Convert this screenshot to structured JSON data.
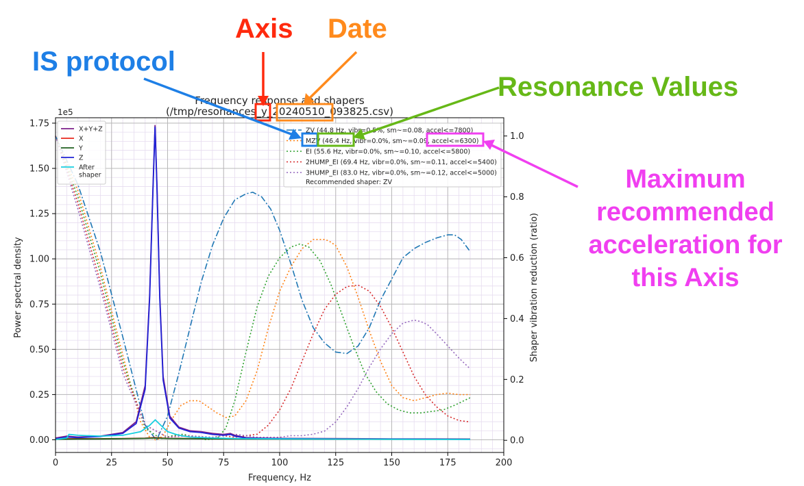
{
  "chart_data": {
    "type": "line",
    "title_line1": "Frequency response and shapers",
    "title_line2": "(/tmp/resonances_y_20240510_093825.csv)",
    "xlabel": "Frequency, Hz",
    "ylabel_left": "Power spectral density",
    "ylabel_right": "Shaper vibration reduction (ratio)",
    "y_left_multiplier": "1e5",
    "xlim": [
      0,
      200
    ],
    "ylim_left": [
      -0.07,
      1.78
    ],
    "ylim_right": [
      -0.04,
      1.06
    ],
    "xticks": [
      0,
      25,
      50,
      75,
      100,
      125,
      150,
      175,
      200
    ],
    "yticks_left": [
      0.0,
      0.25,
      0.5,
      0.75,
      1.0,
      1.25,
      1.5,
      1.75
    ],
    "yticks_left_labels": [
      "0.00",
      "0.25",
      "0.50",
      "0.75",
      "1.00",
      "1.25",
      "1.50",
      "1.75"
    ],
    "yticks_right": [
      0.0,
      0.2,
      0.4,
      0.6,
      0.8,
      1.0
    ],
    "yticks_right_labels": [
      "0.0",
      "0.2",
      "0.4",
      "0.6",
      "0.8",
      "1.0"
    ],
    "grid": true,
    "psd_legend": [
      "X+Y+Z",
      "X",
      "Y",
      "Z",
      "After\nshaper"
    ],
    "psd_series": [
      {
        "name": "X+Y+Z",
        "color": "#7b1f8a",
        "x": [
          0,
          5,
          10,
          20,
          30,
          36,
          40,
          42,
          43.5,
          44.4,
          45.3,
          46.5,
          48,
          51,
          55,
          60,
          65,
          70,
          75,
          78,
          80,
          85,
          90,
          100,
          120,
          150,
          185
        ],
        "y": [
          0.01,
          0.02,
          0.015,
          0.02,
          0.04,
          0.1,
          0.3,
          0.8,
          1.4,
          1.74,
          1.4,
          0.8,
          0.35,
          0.13,
          0.07,
          0.05,
          0.045,
          0.035,
          0.03,
          0.035,
          0.025,
          0.012,
          0.01,
          0.008,
          0.007,
          0.005,
          0.004
        ]
      },
      {
        "name": "X",
        "color": "#e8271b",
        "x": [
          0,
          10,
          20,
          30,
          40,
          44,
          50,
          60,
          80,
          100,
          150,
          185
        ],
        "y": [
          0.005,
          0.006,
          0.006,
          0.007,
          0.009,
          0.012,
          0.008,
          0.007,
          0.006,
          0.005,
          0.004,
          0.004
        ]
      },
      {
        "name": "Y",
        "color": "#1e5e1e",
        "x": [
          0,
          10,
          20,
          30,
          40,
          44,
          50,
          60,
          80,
          100,
          150,
          185
        ],
        "y": [
          0.003,
          0.004,
          0.005,
          0.006,
          0.008,
          0.01,
          0.007,
          0.006,
          0.005,
          0.004,
          0.003,
          0.003
        ]
      },
      {
        "name": "Z",
        "color": "#1f22d6",
        "x": [
          0,
          5,
          10,
          20,
          30,
          36,
          40,
          42,
          43.5,
          44.4,
          45.3,
          46.5,
          48,
          51,
          55,
          60,
          65,
          70,
          75,
          78,
          80,
          85,
          90,
          100,
          120,
          150,
          185
        ],
        "y": [
          0.005,
          0.015,
          0.012,
          0.018,
          0.035,
          0.09,
          0.28,
          0.78,
          1.38,
          1.73,
          1.38,
          0.78,
          0.33,
          0.12,
          0.065,
          0.045,
          0.04,
          0.03,
          0.025,
          0.03,
          0.02,
          0.01,
          0.008,
          0.006,
          0.005,
          0.004,
          0.003
        ]
      },
      {
        "name": "After\nshaper",
        "color": "#17cfe0",
        "x": [
          0,
          5,
          6,
          10,
          20,
          30,
          38,
          42,
          44.5,
          47,
          50,
          55,
          60,
          70,
          80,
          100,
          150,
          185
        ],
        "y": [
          0.002,
          0.01,
          0.03,
          0.025,
          0.02,
          0.025,
          0.045,
          0.08,
          0.11,
          0.08,
          0.045,
          0.025,
          0.015,
          0.01,
          0.007,
          0.005,
          0.003,
          0.002
        ]
      }
    ],
    "shaper_legend": [
      "ZV (44.8 Hz, vibr=0.5%, sm~=0.08, accel<=7800)",
      "MZV (46.4 Hz, vibr=0.0%, sm~=0.09, accel<=6300)",
      "EI (55.6 Hz, vibr=0.0%, sm~=0.10, accel<=5800)",
      "2HUMP_EI (69.4 Hz, vibr=0.0%, sm~=0.11, accel<=5400)",
      "3HUMP_EI (83.0 Hz, vibr=0.0%, sm~=0.12, accel<=5000)"
    ],
    "recommended": "Recommended shaper: ZV",
    "shaper_series": [
      {
        "name": "ZV",
        "color": "#1f77b4",
        "style": "dashdot",
        "x": [
          0,
          10,
          20,
          30,
          40,
          45,
          50,
          55,
          60,
          65,
          70,
          75,
          80,
          85,
          88,
          92,
          96,
          100,
          105,
          110,
          115,
          120,
          125,
          130,
          135,
          140,
          145,
          150,
          155,
          160,
          165,
          170,
          175,
          178,
          181,
          185
        ],
        "y": [
          1.0,
          0.84,
          0.62,
          0.34,
          0.05,
          0.0,
          0.08,
          0.22,
          0.37,
          0.52,
          0.64,
          0.73,
          0.79,
          0.81,
          0.815,
          0.8,
          0.76,
          0.69,
          0.58,
          0.46,
          0.37,
          0.32,
          0.29,
          0.285,
          0.31,
          0.37,
          0.46,
          0.53,
          0.6,
          0.63,
          0.65,
          0.665,
          0.675,
          0.675,
          0.66,
          0.62
        ]
      },
      {
        "name": "MZV",
        "color": "#ff7f0e",
        "style": "dotted",
        "x": [
          0,
          10,
          20,
          30,
          38,
          42,
          45,
          48,
          52,
          56,
          60,
          64,
          68,
          72,
          76,
          80,
          85,
          90,
          95,
          100,
          105,
          110,
          115,
          120,
          122,
          125,
          130,
          135,
          140,
          145,
          150,
          155,
          160,
          165,
          170,
          175,
          180,
          185
        ],
        "y": [
          1.0,
          0.82,
          0.57,
          0.28,
          0.06,
          0.01,
          0.0,
          0.015,
          0.07,
          0.115,
          0.13,
          0.13,
          0.11,
          0.09,
          0.075,
          0.08,
          0.13,
          0.23,
          0.37,
          0.49,
          0.57,
          0.63,
          0.66,
          0.66,
          0.655,
          0.64,
          0.57,
          0.47,
          0.36,
          0.26,
          0.18,
          0.14,
          0.13,
          0.14,
          0.15,
          0.155,
          0.15,
          0.15
        ]
      },
      {
        "name": "EI",
        "color": "#2ca02c",
        "style": "dotted",
        "x": [
          0,
          10,
          20,
          30,
          40,
          47,
          52,
          57,
          62,
          67,
          72,
          76,
          80,
          85,
          90,
          95,
          100,
          105,
          109,
          113,
          118,
          123,
          128,
          133,
          138,
          143,
          148,
          153,
          158,
          163,
          168,
          173,
          178,
          185
        ],
        "y": [
          1.0,
          0.8,
          0.55,
          0.26,
          0.04,
          0.005,
          0.015,
          0.02,
          0.01,
          0.002,
          0.005,
          0.04,
          0.13,
          0.29,
          0.44,
          0.54,
          0.6,
          0.635,
          0.645,
          0.635,
          0.59,
          0.51,
          0.41,
          0.31,
          0.22,
          0.16,
          0.12,
          0.1,
          0.09,
          0.09,
          0.095,
          0.1,
          0.115,
          0.14
        ]
      },
      {
        "name": "2HUMP_EI",
        "color": "#d62728",
        "style": "dotted",
        "x": [
          0,
          10,
          20,
          30,
          40,
          50,
          55,
          60,
          65,
          70,
          75,
          80,
          85,
          90,
          95,
          100,
          105,
          110,
          115,
          120,
          125,
          130,
          135,
          140,
          145,
          150,
          155,
          160,
          165,
          170,
          175,
          180,
          185
        ],
        "y": [
          1.0,
          0.78,
          0.52,
          0.24,
          0.05,
          0.01,
          0.015,
          0.015,
          0.01,
          0.01,
          0.015,
          0.01,
          0.015,
          0.02,
          0.05,
          0.1,
          0.17,
          0.26,
          0.35,
          0.43,
          0.48,
          0.505,
          0.51,
          0.49,
          0.44,
          0.37,
          0.29,
          0.21,
          0.15,
          0.11,
          0.08,
          0.065,
          0.06
        ]
      },
      {
        "name": "3HUMP_EI",
        "color": "#9467bd",
        "style": "dotted",
        "x": [
          0,
          10,
          20,
          30,
          40,
          50,
          60,
          70,
          80,
          90,
          100,
          105,
          110,
          115,
          120,
          125,
          130,
          135,
          140,
          145,
          150,
          155,
          160,
          163,
          166,
          170,
          175,
          180,
          185
        ],
        "y": [
          1.0,
          0.76,
          0.5,
          0.22,
          0.05,
          0.01,
          0.015,
          0.01,
          0.02,
          0.01,
          0.01,
          0.015,
          0.015,
          0.02,
          0.03,
          0.06,
          0.11,
          0.17,
          0.24,
          0.3,
          0.35,
          0.385,
          0.395,
          0.39,
          0.38,
          0.35,
          0.31,
          0.27,
          0.235
        ]
      }
    ]
  },
  "annotations": {
    "axis": "Axis",
    "date": "Date",
    "is_protocol": "IS protocol",
    "resonance": "Resonance Values",
    "max_accel": "Maximum recommended acceleration for this Axis"
  },
  "colors": {
    "axis": "#ff2a0e",
    "date": "#ff8a1c",
    "is_protocol": "#1e7fe6",
    "resonance": "#66b817",
    "max_accel": "#f03ff0"
  }
}
